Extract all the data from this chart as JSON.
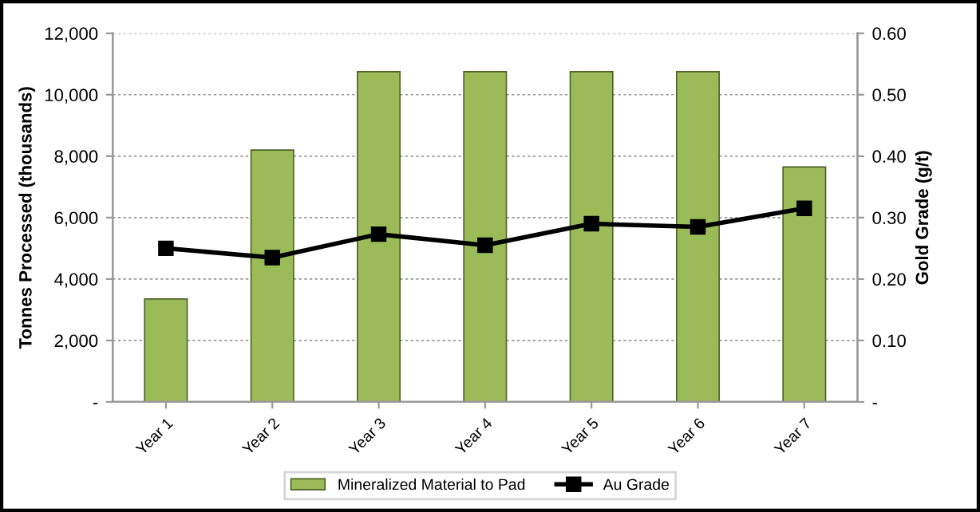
{
  "chart_data": {
    "type": "bar",
    "categories": [
      "Year 1",
      "Year 2",
      "Year 3",
      "Year 4",
      "Year 5",
      "Year 6",
      "Year 7"
    ],
    "series": [
      {
        "name": "Mineralized Material to Pad",
        "color": "#9bbb59",
        "values": [
          3350,
          8200,
          10750,
          10750,
          10750,
          10750,
          7650
        ]
      },
      {
        "name": "Au Grade",
        "type": "line",
        "axis": "y2",
        "color": "#000000",
        "marker": "square",
        "values": [
          0.25,
          0.235,
          0.273,
          0.255,
          0.29,
          0.285,
          0.315
        ]
      }
    ],
    "ylabel": "Tonnes Processed (thousands)",
    "y2label": "Gold Grade (g/t)",
    "ylim": [
      0,
      12000
    ],
    "yticks": [
      {
        "value": 0,
        "label": "-"
      },
      {
        "value": 2000,
        "label": "2,000"
      },
      {
        "value": 4000,
        "label": "4,000"
      },
      {
        "value": 6000,
        "label": "6,000"
      },
      {
        "value": 8000,
        "label": "8,000"
      },
      {
        "value": 10000,
        "label": "10,000"
      },
      {
        "value": 12000,
        "label": "12,000"
      }
    ],
    "y2lim": [
      0,
      0.6
    ],
    "y2ticks": [
      {
        "value": 0,
        "label": "-"
      },
      {
        "value": 0.1,
        "label": "0.10"
      },
      {
        "value": 0.2,
        "label": "0.20"
      },
      {
        "value": 0.3,
        "label": "0.30"
      },
      {
        "value": 0.4,
        "label": "0.40"
      },
      {
        "value": 0.5,
        "label": "0.50"
      },
      {
        "value": 0.6,
        "label": "0.60"
      }
    ],
    "grid": "y",
    "legend": "bottom"
  }
}
